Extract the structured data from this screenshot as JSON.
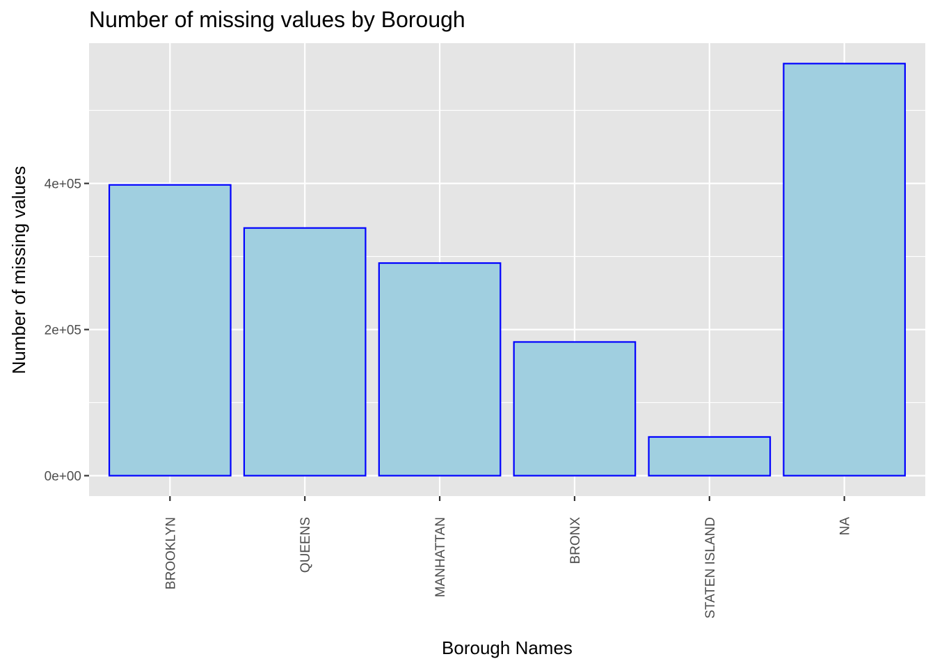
{
  "chart_data": {
    "type": "bar",
    "title": "Number of missing values by Borough",
    "xlabel": "Borough Names",
    "ylabel": "Number of missing values",
    "categories": [
      "BROOKLYN",
      "QUEENS",
      "MANHATTAN",
      "BRONX",
      "STATEN ISLAND",
      "NA"
    ],
    "values": [
      398000,
      339000,
      291000,
      183000,
      53000,
      564000
    ],
    "ylim": [
      -28000,
      592000
    ],
    "yticks": [
      0,
      200000,
      400000
    ],
    "ytick_labels": [
      "0e+00",
      "2e+05",
      "4e+05"
    ],
    "y_minor_ticks": [
      100000,
      300000,
      500000
    ],
    "grid": true,
    "colors": {
      "panel_background": "#e5e5e5",
      "grid": "#ffffff",
      "bar_fill": "#a0cfe0",
      "bar_outline": "#0000ff",
      "tick_text": "#4d4d4d",
      "tick_mark": "#333333"
    }
  }
}
